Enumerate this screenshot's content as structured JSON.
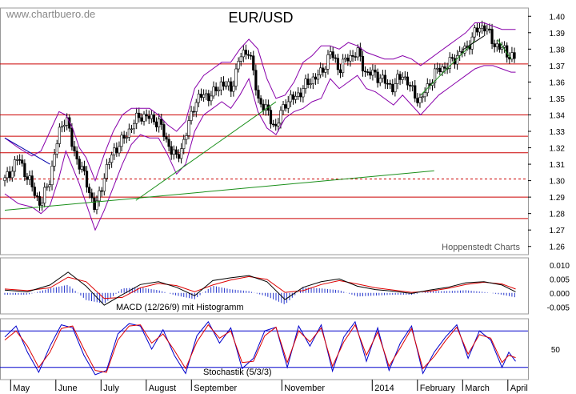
{
  "watermark": "www.chartbuero.de",
  "credit": "Hoppenstedt Charts",
  "chart_data": [
    {
      "type": "line",
      "panel": "price",
      "title": "EUR/USD",
      "ylim": [
        1.255,
        1.405
      ],
      "y_ticks": [
        "1.40",
        "1.39",
        "1.38",
        "1.37",
        "1.36",
        "1.35",
        "1.34",
        "1.33",
        "1.32",
        "1.31",
        "1.30",
        "1.29",
        "1.28",
        "1.27",
        "1.26"
      ],
      "x_labels": [
        {
          "label": "May",
          "month": 0.2
        },
        {
          "label": "June",
          "month": 1.2
        },
        {
          "label": "July",
          "month": 2.2
        },
        {
          "label": "August",
          "month": 3.2
        },
        {
          "label": "September",
          "month": 4.2
        },
        {
          "label": "November",
          "month": 6.2
        },
        {
          "label": "2014",
          "month": 8.2
        },
        {
          "label": "February",
          "month": 9.2
        },
        {
          "label": "March",
          "month": 10.2
        },
        {
          "label": "April",
          "month": 11.2
        }
      ],
      "horizontal_levels": [
        1.371,
        1.34,
        1.327,
        1.317,
        1.301,
        1.29,
        1.277
      ],
      "dashed_levels": [
        1.301
      ],
      "close_series": {
        "x_month": [
          0,
          0.3,
          0.6,
          0.8,
          1.0,
          1.2,
          1.35,
          1.5,
          1.65,
          1.8,
          2.0,
          2.2,
          2.4,
          2.6,
          2.8,
          3.0,
          3.2,
          3.4,
          3.6,
          3.8,
          4.0,
          4.2,
          4.4,
          4.6,
          4.8,
          5.0,
          5.2,
          5.4,
          5.6,
          5.8,
          6.0,
          6.2,
          6.4,
          6.6,
          6.8,
          7.0,
          7.2,
          7.4,
          7.6,
          7.8,
          8.0,
          8.2,
          8.4,
          8.6,
          8.8,
          9.0,
          9.2,
          9.4,
          9.6,
          9.8,
          10.0,
          10.2,
          10.4,
          10.6,
          10.8,
          11.0,
          11.2,
          11.3
        ],
        "close": [
          1.3,
          1.314,
          1.296,
          1.285,
          1.302,
          1.329,
          1.34,
          1.32,
          1.31,
          1.3,
          1.282,
          1.303,
          1.318,
          1.324,
          1.333,
          1.34,
          1.338,
          1.336,
          1.323,
          1.313,
          1.327,
          1.348,
          1.352,
          1.352,
          1.36,
          1.355,
          1.375,
          1.38,
          1.35,
          1.342,
          1.332,
          1.348,
          1.35,
          1.356,
          1.362,
          1.365,
          1.378,
          1.368,
          1.375,
          1.378,
          1.365,
          1.365,
          1.36,
          1.357,
          1.365,
          1.355,
          1.348,
          1.36,
          1.368,
          1.37,
          1.376,
          1.38,
          1.39,
          1.395,
          1.384,
          1.38,
          1.376,
          1.373
        ],
        "upper_band": [
          1.326,
          1.32,
          1.315,
          1.318,
          1.33,
          1.342,
          1.34,
          1.332,
          1.32,
          1.314,
          1.3,
          1.316,
          1.33,
          1.34,
          1.344,
          1.344,
          1.344,
          1.34,
          1.334,
          1.33,
          1.336,
          1.356,
          1.364,
          1.368,
          1.372,
          1.372,
          1.38,
          1.386,
          1.38,
          1.362,
          1.35,
          1.352,
          1.36,
          1.372,
          1.376,
          1.382,
          1.382,
          1.38,
          1.384,
          1.382,
          1.378,
          1.376,
          1.374,
          1.374,
          1.376,
          1.374,
          1.37,
          1.374,
          1.378,
          1.382,
          1.386,
          1.39,
          1.396,
          1.396,
          1.394,
          1.392,
          1.392,
          1.392
        ],
        "lower_band": [
          1.292,
          1.286,
          1.284,
          1.28,
          1.285,
          1.302,
          1.318,
          1.308,
          1.298,
          1.286,
          1.27,
          1.282,
          1.296,
          1.31,
          1.322,
          1.328,
          1.326,
          1.326,
          1.316,
          1.304,
          1.31,
          1.33,
          1.34,
          1.344,
          1.348,
          1.344,
          1.352,
          1.362,
          1.342,
          1.332,
          1.328,
          1.338,
          1.342,
          1.344,
          1.348,
          1.35,
          1.362,
          1.356,
          1.36,
          1.364,
          1.356,
          1.354,
          1.35,
          1.346,
          1.352,
          1.346,
          1.34,
          1.346,
          1.352,
          1.356,
          1.36,
          1.364,
          1.368,
          1.37,
          1.37,
          1.368,
          1.366,
          1.366
        ]
      },
      "trendlines": [
        {
          "color": "#1a8f1a",
          "points": [
            [
              0,
              1.282
            ],
            [
              9.5,
              1.306
            ]
          ]
        },
        {
          "color": "#1a8f1a",
          "points": [
            [
              2.9,
              1.288
            ],
            [
              6.0,
              1.348
            ]
          ]
        },
        {
          "color": "#1a8f1a",
          "points": [
            [
              9.2,
              1.352
            ],
            [
              10.4,
              1.385
            ]
          ]
        },
        {
          "color": "#1a8f1a",
          "points": [
            [
              10.9,
              1.386
            ],
            [
              11.2,
              1.374
            ]
          ]
        },
        {
          "color": "#0000aa",
          "points": [
            [
              0,
              1.326
            ],
            [
              1.0,
              1.31
            ]
          ]
        },
        {
          "color": "#000000",
          "points": [
            [
              10.1,
              1.379
            ],
            [
              10.6,
              1.388
            ]
          ]
        }
      ]
    },
    {
      "type": "line",
      "panel": "macd",
      "title": "MACD (12/26/9) mit Histogramm",
      "ylim": [
        -0.0075,
        0.0125
      ],
      "y_ticks": [
        "0.010",
        "0.005",
        "0.000",
        "-0.005"
      ],
      "series": [
        {
          "color": "#000000",
          "x_month": [
            0,
            0.5,
            1.0,
            1.4,
            1.8,
            2.2,
            2.6,
            3.0,
            3.4,
            3.8,
            4.2,
            4.6,
            5.0,
            5.4,
            5.8,
            6.2,
            6.6,
            7.0,
            7.4,
            7.8,
            8.2,
            8.6,
            9.0,
            9.4,
            9.8,
            10.2,
            10.6,
            11.0,
            11.3
          ],
          "values": [
            0.001,
            0.0004,
            0.0028,
            0.0074,
            0.0024,
            -0.0044,
            -0.0006,
            0.003,
            0.004,
            0.002,
            -0.001,
            0.0044,
            0.0054,
            0.0062,
            0.004,
            -0.0024,
            0.002,
            0.004,
            0.005,
            0.0024,
            0.0012,
            0.0006,
            -0.0002,
            0.001,
            0.002,
            0.0036,
            0.004,
            0.0028,
            0.0004
          ]
        },
        {
          "color": "#dd0000",
          "x_month": [
            0,
            0.5,
            1.0,
            1.4,
            1.8,
            2.2,
            2.6,
            3.0,
            3.4,
            3.8,
            4.2,
            4.6,
            5.0,
            5.4,
            5.8,
            6.2,
            6.6,
            7.0,
            7.4,
            7.8,
            8.2,
            8.6,
            9.0,
            9.4,
            9.8,
            10.2,
            10.6,
            11.0,
            11.3
          ],
          "values": [
            0.0014,
            0.0008,
            0.0018,
            0.0056,
            0.004,
            -0.002,
            -0.0016,
            0.0018,
            0.0034,
            0.0026,
            0.0004,
            0.0028,
            0.0046,
            0.0058,
            0.0048,
            0.0002,
            0.0008,
            0.003,
            0.0044,
            0.0032,
            0.0018,
            0.001,
            0.0002,
            0.0006,
            0.0016,
            0.003,
            0.0038,
            0.0032,
            0.0014
          ]
        }
      ]
    },
    {
      "type": "line",
      "panel": "stochastic",
      "title": "Stochastik (5/3/3)",
      "ylim": [
        0,
        100
      ],
      "y_ticks": [
        "50"
      ],
      "levels": [
        80,
        20
      ],
      "series": [
        {
          "color": "#0000cc",
          "x_month": [
            0,
            0.25,
            0.5,
            0.75,
            1.0,
            1.25,
            1.5,
            1.75,
            2.0,
            2.25,
            2.5,
            2.75,
            3.0,
            3.25,
            3.5,
            3.75,
            4.0,
            4.25,
            4.5,
            4.75,
            5.0,
            5.25,
            5.5,
            5.75,
            6.0,
            6.25,
            6.5,
            6.75,
            7.0,
            7.25,
            7.5,
            7.75,
            8.0,
            8.25,
            8.5,
            8.75,
            9.0,
            9.25,
            9.5,
            9.75,
            10.0,
            10.25,
            10.5,
            10.75,
            11.0,
            11.15,
            11.3
          ],
          "values": [
            70,
            88,
            45,
            12,
            55,
            90,
            85,
            40,
            8,
            15,
            75,
            92,
            88,
            50,
            82,
            40,
            10,
            72,
            95,
            60,
            85,
            18,
            35,
            80,
            86,
            20,
            88,
            55,
            90,
            14,
            70,
            95,
            30,
            85,
            15,
            60,
            88,
            10,
            45,
            70,
            90,
            35,
            80,
            65,
            20,
            45,
            30
          ]
        },
        {
          "color": "#dd0000",
          "x_month": [
            0,
            0.25,
            0.5,
            0.75,
            1.0,
            1.25,
            1.5,
            1.75,
            2.0,
            2.25,
            2.5,
            2.75,
            3.0,
            3.25,
            3.5,
            3.75,
            4.0,
            4.25,
            4.5,
            4.75,
            5.0,
            5.25,
            5.5,
            5.75,
            6.0,
            6.25,
            6.5,
            6.75,
            7.0,
            7.25,
            7.5,
            7.75,
            8.0,
            8.25,
            8.5,
            8.75,
            9.0,
            9.25,
            9.5,
            9.75,
            10.0,
            10.25,
            10.5,
            10.75,
            11.0,
            11.15,
            11.3
          ],
          "values": [
            65,
            80,
            55,
            20,
            45,
            84,
            88,
            50,
            15,
            12,
            65,
            88,
            90,
            60,
            75,
            48,
            18,
            62,
            90,
            68,
            80,
            28,
            30,
            72,
            86,
            28,
            80,
            62,
            85,
            22,
            62,
            90,
            40,
            78,
            22,
            52,
            84,
            18,
            38,
            64,
            86,
            42,
            74,
            68,
            28,
            40,
            36
          ]
        }
      ]
    }
  ]
}
